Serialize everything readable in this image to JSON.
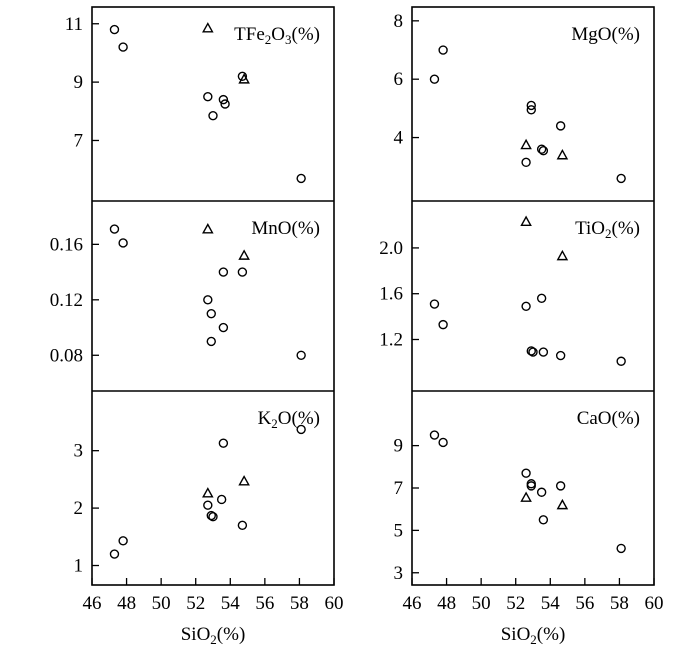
{
  "chart_data": [
    {
      "type": "scatter",
      "title": "TFe2O3(%)",
      "title_parts": [
        "TFe",
        "2",
        "O",
        "3",
        "(%)"
      ],
      "column": "left",
      "row": 0,
      "xlabel": "SiO2(%)",
      "xlim": [
        46,
        60
      ],
      "ylim": [
        5.2,
        11.3
      ],
      "yticks": [
        "7",
        "9",
        "11"
      ],
      "series": [
        {
          "name": "circle",
          "marker": "circle",
          "points": [
            [
              47.3,
              10.8
            ],
            [
              47.8,
              10.2
            ],
            [
              52.7,
              8.5
            ],
            [
              53.0,
              7.85
            ],
            [
              53.6,
              8.4
            ],
            [
              53.7,
              8.25
            ],
            [
              54.7,
              9.2
            ],
            [
              58.1,
              5.7
            ]
          ]
        },
        {
          "name": "triangle",
          "marker": "triangle",
          "points": [
            [
              52.7,
              10.85
            ],
            [
              54.8,
              9.1
            ]
          ]
        }
      ]
    },
    {
      "type": "scatter",
      "title": "MgO(%)",
      "title_parts": [
        "MgO(%)"
      ],
      "column": "right",
      "row": 0,
      "xlabel": "SiO2(%)",
      "xlim": [
        46,
        60
      ],
      "ylim": [
        2.1,
        8.2
      ],
      "yticks": [
        "4",
        "6",
        "8"
      ],
      "series": [
        {
          "name": "circle",
          "marker": "circle",
          "points": [
            [
              47.3,
              6.0
            ],
            [
              47.8,
              7.0
            ],
            [
              52.6,
              3.15
            ],
            [
              52.9,
              5.1
            ],
            [
              52.9,
              4.95
            ],
            [
              53.5,
              3.6
            ],
            [
              53.6,
              3.55
            ],
            [
              54.6,
              4.4
            ],
            [
              58.1,
              2.6
            ]
          ]
        },
        {
          "name": "triangle",
          "marker": "triangle",
          "points": [
            [
              52.6,
              3.75
            ],
            [
              54.7,
              3.4
            ]
          ]
        }
      ]
    },
    {
      "type": "scatter",
      "title": "MnO(%)",
      "title_parts": [
        "MnO(%)"
      ],
      "column": "left",
      "row": 1,
      "xlabel": "SiO2(%)",
      "xlim": [
        46,
        60
      ],
      "ylim": [
        0.06,
        0.1855
      ],
      "yticks": [
        "0.08",
        "0.12",
        "0.16"
      ],
      "series": [
        {
          "name": "circle",
          "marker": "circle",
          "points": [
            [
              47.3,
              0.171
            ],
            [
              47.8,
              0.161
            ],
            [
              52.7,
              0.12
            ],
            [
              52.9,
              0.11
            ],
            [
              53.6,
              0.14
            ],
            [
              53.6,
              0.1
            ],
            [
              52.9,
              0.09
            ],
            [
              54.7,
              0.14
            ],
            [
              58.1,
              0.08
            ]
          ]
        },
        {
          "name": "triangle",
          "marker": "triangle",
          "points": [
            [
              52.7,
              0.171
            ],
            [
              54.8,
              0.152
            ]
          ]
        }
      ]
    },
    {
      "type": "scatter",
      "title": "TiO2(%)",
      "title_parts": [
        "TiO",
        "2",
        "(%)"
      ],
      "column": "right",
      "row": 1,
      "xlabel": "SiO2(%)",
      "xlim": [
        46,
        60
      ],
      "ylim": [
        0.82,
        2.34
      ],
      "yticks": [
        "1.2",
        "1.6",
        "2.0"
      ],
      "series": [
        {
          "name": "circle",
          "marker": "circle",
          "points": [
            [
              47.3,
              1.51
            ],
            [
              47.8,
              1.33
            ],
            [
              52.6,
              1.49
            ],
            [
              52.9,
              1.1
            ],
            [
              53.0,
              1.09
            ],
            [
              53.5,
              1.56
            ],
            [
              53.6,
              1.09
            ],
            [
              54.6,
              1.06
            ],
            [
              58.1,
              1.01
            ]
          ]
        },
        {
          "name": "triangle",
          "marker": "triangle",
          "points": [
            [
              52.6,
              2.23
            ],
            [
              54.7,
              1.93
            ]
          ]
        }
      ]
    },
    {
      "type": "scatter",
      "title": "K2O(%)",
      "title_parts": [
        "K",
        "2",
        "O(%)"
      ],
      "column": "left",
      "row": 2,
      "xlabel": "SiO2(%)",
      "xlim": [
        46,
        60
      ],
      "ylim": [
        0.8,
        3.9
      ],
      "yticks": [
        "1",
        "2",
        "3"
      ],
      "xticks": [
        "46",
        "48",
        "50",
        "52",
        "54",
        "56",
        "58",
        "60"
      ],
      "series": [
        {
          "name": "circle",
          "marker": "circle",
          "points": [
            [
              47.3,
              1.2
            ],
            [
              47.8,
              1.43
            ],
            [
              52.7,
              2.05
            ],
            [
              53.0,
              1.85
            ],
            [
              52.9,
              1.87
            ],
            [
              53.5,
              2.15
            ],
            [
              53.6,
              3.13
            ],
            [
              54.7,
              1.7
            ],
            [
              58.1,
              3.37
            ]
          ]
        },
        {
          "name": "triangle",
          "marker": "triangle",
          "points": [
            [
              52.7,
              2.26
            ],
            [
              54.8,
              2.47
            ]
          ]
        }
      ]
    },
    {
      "type": "scatter",
      "title": "CaO(%)",
      "title_parts": [
        "CaO(%)"
      ],
      "column": "right",
      "row": 2,
      "xlabel": "SiO2(%)",
      "xlim": [
        46,
        60
      ],
      "ylim": [
        2.8,
        11.2
      ],
      "yticks": [
        "3",
        "5",
        "7",
        "9"
      ],
      "xticks": [
        "46",
        "48",
        "50",
        "52",
        "54",
        "56",
        "58",
        "60"
      ],
      "series": [
        {
          "name": "circle",
          "marker": "circle",
          "points": [
            [
              47.3,
              9.5
            ],
            [
              47.8,
              9.15
            ],
            [
              52.6,
              7.7
            ],
            [
              52.9,
              7.2
            ],
            [
              52.9,
              7.1
            ],
            [
              53.5,
              6.8
            ],
            [
              53.6,
              5.5
            ],
            [
              54.6,
              7.1
            ],
            [
              58.1,
              4.15
            ]
          ]
        },
        {
          "name": "triangle",
          "marker": "triangle",
          "points": [
            [
              52.6,
              6.55
            ],
            [
              54.7,
              6.2
            ]
          ]
        }
      ]
    }
  ],
  "x_axis_titles": [
    {
      "column": "left",
      "parts": [
        "SiO",
        "2",
        "(%)"
      ]
    },
    {
      "column": "right",
      "parts": [
        "SiO",
        "2",
        "(%)"
      ]
    }
  ]
}
